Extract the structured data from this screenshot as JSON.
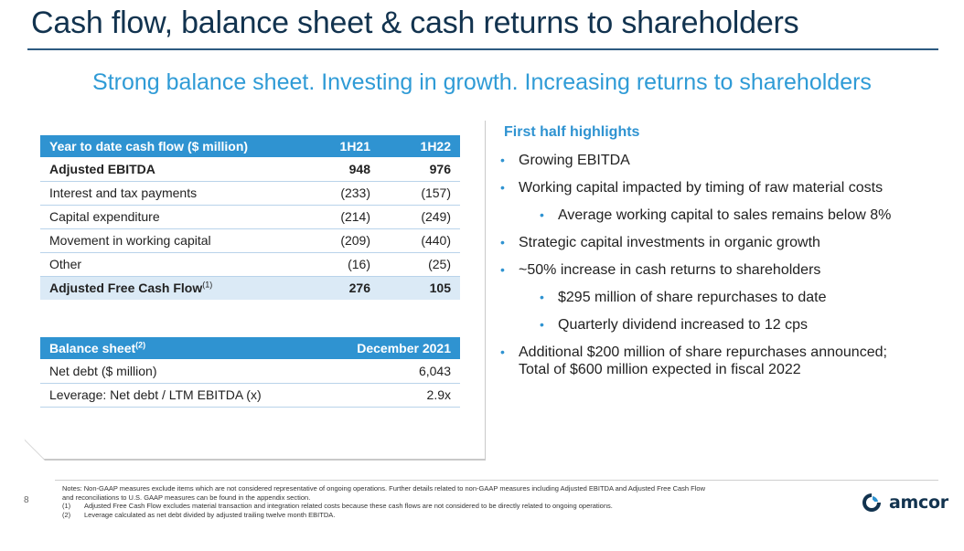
{
  "title": "Cash flow, balance sheet & cash returns to shareholders",
  "subtitle": "Strong balance sheet. Investing in growth. Increasing returns to shareholders",
  "cash_flow": {
    "header": "Year to date cash flow ($ million)",
    "columns": [
      "1H21",
      "1H22"
    ],
    "rows": [
      {
        "label": "Adjusted EBITDA",
        "v1": "948",
        "v2": "976"
      },
      {
        "label": "Interest and tax payments",
        "v1": "(233)",
        "v2": "(157)"
      },
      {
        "label": "Capital expenditure",
        "v1": "(214)",
        "v2": "(249)"
      },
      {
        "label": "Movement in working capital",
        "v1": "(209)",
        "v2": "(440)"
      },
      {
        "label": "Other",
        "v1": "(16)",
        "v2": "(25)"
      }
    ],
    "total": {
      "label": "Adjusted Free Cash Flow",
      "sup": "(1)",
      "v1": "276",
      "v2": "105"
    }
  },
  "balance_sheet": {
    "header": "Balance sheet",
    "header_sup": "(2)",
    "column": "December 2021",
    "rows": [
      {
        "label": "Net debt ($ million)",
        "value": "6,043"
      },
      {
        "label": "Leverage: Net debt / LTM EBITDA (x)",
        "value": "2.9x"
      }
    ]
  },
  "highlights": {
    "title": "First half highlights",
    "bullets": [
      "Growing EBITDA",
      "Working capital impacted by timing of raw material costs",
      "Average working capital to sales remains below 8%",
      "Strategic capital investments in organic growth",
      "~50% increase in cash returns to shareholders",
      "$295 million of share repurchases to date",
      "Quarterly dividend increased to 12 cps",
      "Additional $200 million of share repurchases announced;",
      "Total of $600 million expected in fiscal 2022"
    ]
  },
  "footer": {
    "page_number": "8",
    "notes_line1": "Notes: Non-GAAP measures exclude items which are not considered representative of ongoing operations.  Further details related to non-GAAP measures including Adjusted EBITDA and Adjusted Free Cash Flow",
    "notes_line2": "and reconciliations to U.S. GAAP measures can be found in the appendix section.",
    "note1_label": "(1)",
    "note1_text": "Adjusted Free Cash Flow excludes material transaction and integration related costs because these cash flows are not considered to be directly related to ongoing operations.",
    "note2_label": "(2)",
    "note2_text": "Leverage calculated as net debt divided by adjusted trailing twelve month EBITDA.",
    "logo_text": "amcor"
  },
  "colors": {
    "title": "#12334f",
    "accent": "#2f93d1",
    "table_header": "#2f93d1",
    "highlight_row": "#dbeaf6"
  },
  "icons": {
    "bullet": "bullet-dot-icon",
    "logo": "amcor-logo-icon"
  }
}
